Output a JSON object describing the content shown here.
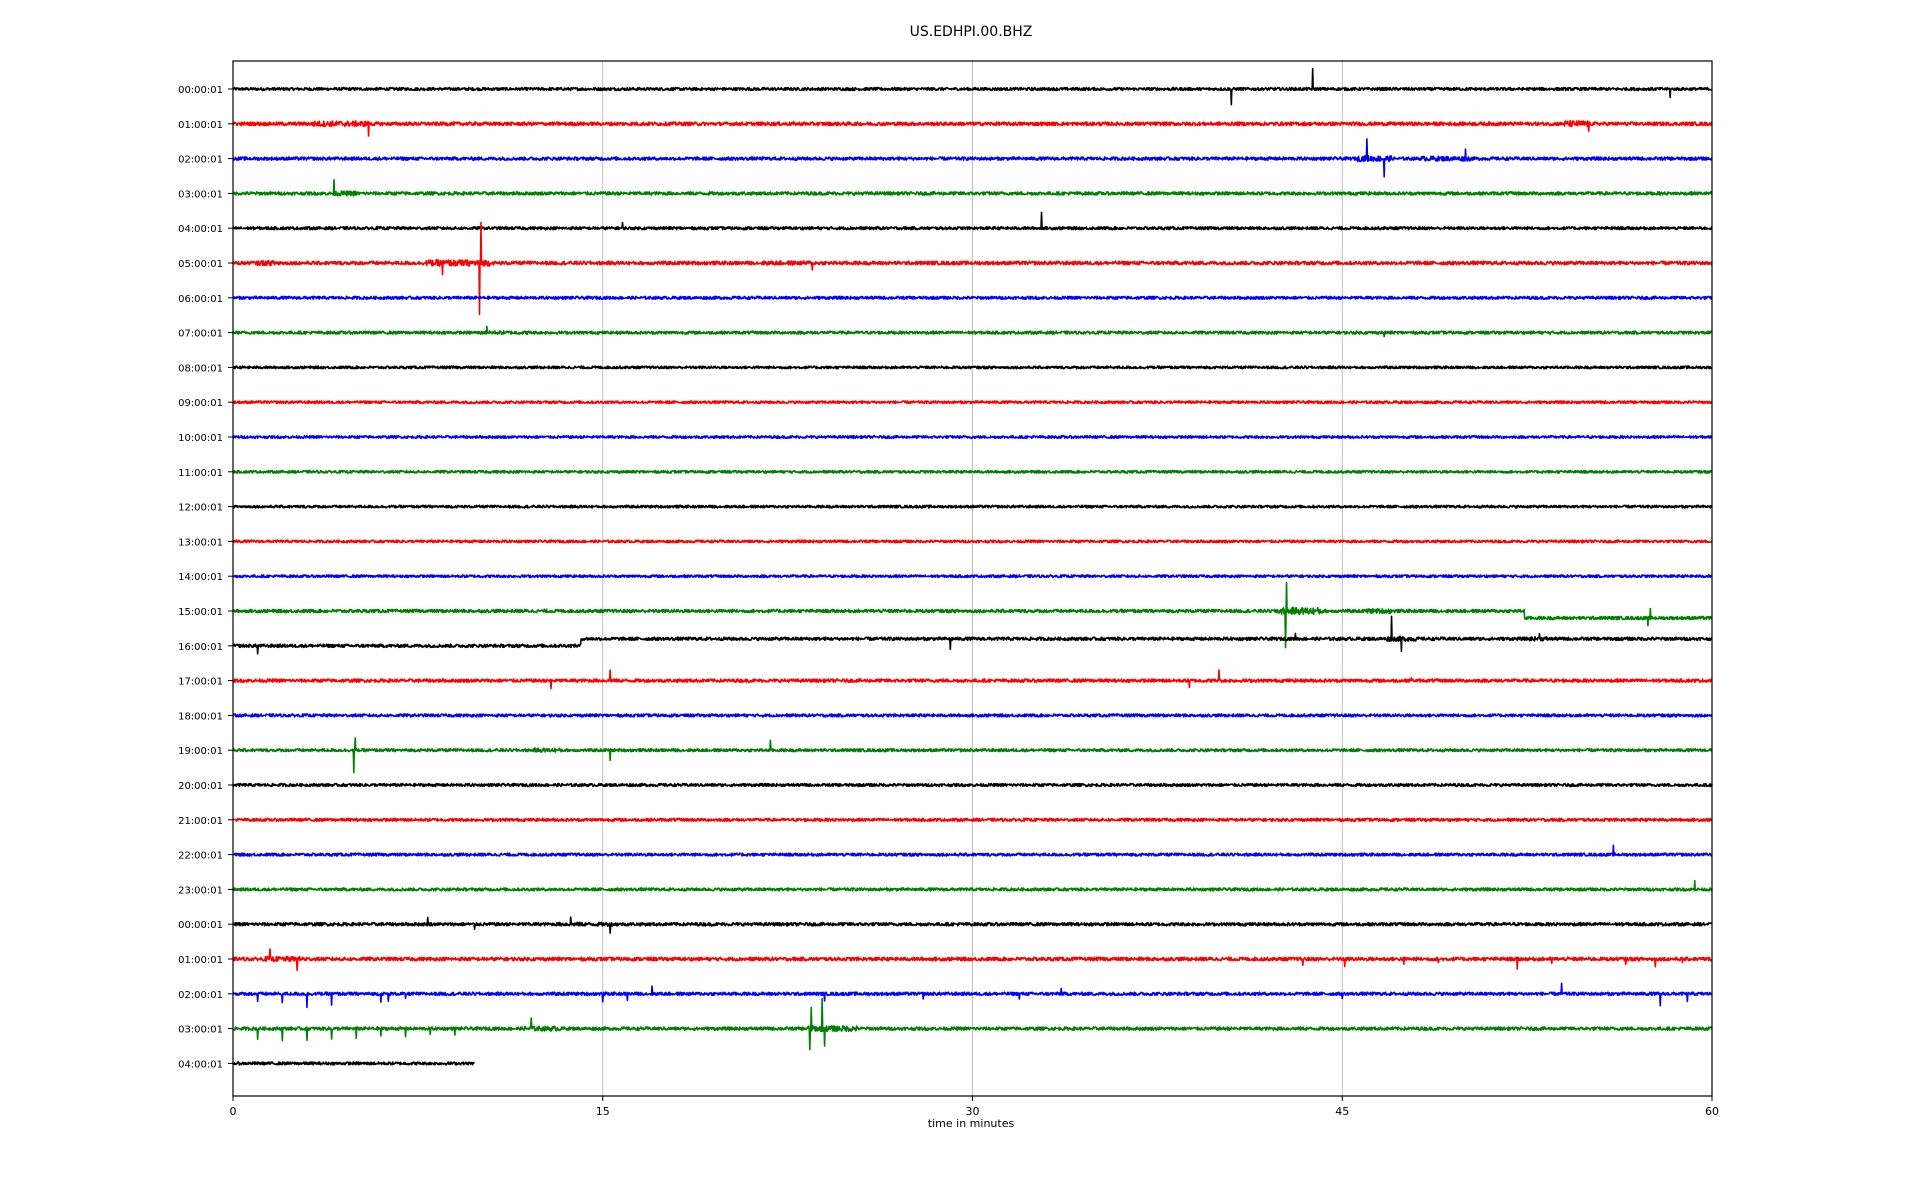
{
  "chart_data": {
    "type": "line",
    "title": "US.EDHPI.00.BHZ",
    "xlabel": "time in minutes",
    "ylabel": "",
    "xlim": [
      0,
      60
    ],
    "xticks": [
      0,
      15,
      30,
      45,
      60
    ],
    "xtick_labels": [
      "0",
      "15",
      "30",
      "45",
      "60"
    ],
    "vertical_grid": true,
    "trace_colors": [
      "#000000",
      "#ff0000",
      "#0000ff",
      "#008000"
    ],
    "rows": [
      {
        "label": "00:00:01",
        "color": "#000000",
        "end": 60,
        "noise": 0.18,
        "spikes": [
          [
            40.5,
            -3.2
          ],
          [
            43.8,
            3.8
          ],
          [
            58.3,
            -1.8
          ]
        ],
        "bursts": [],
        "steps": []
      },
      {
        "label": "01:00:01",
        "color": "#ff0000",
        "end": 60,
        "noise": 0.22,
        "spikes": [
          [
            5.5,
            -2.0
          ],
          [
            55.0,
            -1.5
          ]
        ],
        "bursts": [
          [
            3.2,
            5.5,
            1.6
          ],
          [
            54.0,
            55.0,
            1.8
          ]
        ],
        "steps": []
      },
      {
        "label": "02:00:01",
        "color": "#0000ff",
        "end": 60,
        "noise": 0.2,
        "spikes": [
          [
            46.0,
            3.6
          ],
          [
            46.7,
            -3.5
          ],
          [
            50.0,
            1.6
          ]
        ],
        "bursts": [
          [
            45.6,
            47.0,
            1.8
          ],
          [
            48.2,
            50.2,
            1.5
          ]
        ],
        "steps": []
      },
      {
        "label": "03:00:01",
        "color": "#008000",
        "end": 60,
        "noise": 0.2,
        "spikes": [
          [
            4.1,
            2.6
          ]
        ],
        "bursts": [
          [
            4.0,
            5.0,
            1.5
          ],
          [
            50.8,
            51.2,
            1.0
          ]
        ],
        "steps": []
      },
      {
        "label": "04:00:01",
        "color": "#000000",
        "end": 60,
        "noise": 0.18,
        "spikes": [
          [
            32.8,
            3.4
          ],
          [
            15.8,
            0.9
          ]
        ],
        "bursts": [],
        "steps": []
      },
      {
        "label": "05:00:01",
        "color": "#ff0000",
        "end": 60,
        "noise": 0.22,
        "spikes": [
          [
            10.0,
            -10.5
          ],
          [
            10.05,
            8.0
          ],
          [
            8.5,
            -2.0
          ],
          [
            23.5,
            -1.6
          ]
        ],
        "bursts": [
          [
            1.0,
            2.0,
            1.4
          ],
          [
            7.8,
            10.4,
            1.8
          ],
          [
            21.5,
            23.5,
            1.2
          ]
        ],
        "steps": []
      },
      {
        "label": "06:00:01",
        "color": "#0000ff",
        "end": 60,
        "noise": 0.18,
        "spikes": [],
        "bursts": [],
        "steps": []
      },
      {
        "label": "07:00:01",
        "color": "#008000",
        "end": 60,
        "noise": 0.18,
        "spikes": [
          [
            10.3,
            1.4
          ],
          [
            46.7,
            -1.0
          ]
        ],
        "bursts": [
          [
            10.0,
            12.0,
            1.2
          ]
        ],
        "steps": []
      },
      {
        "label": "08:00:01",
        "color": "#000000",
        "end": 60,
        "noise": 0.16,
        "spikes": [],
        "bursts": [],
        "steps": []
      },
      {
        "label": "09:00:01",
        "color": "#ff0000",
        "end": 60,
        "noise": 0.16,
        "spikes": [],
        "bursts": [],
        "steps": []
      },
      {
        "label": "10:00:01",
        "color": "#0000ff",
        "end": 60,
        "noise": 0.16,
        "spikes": [],
        "bursts": [],
        "steps": []
      },
      {
        "label": "11:00:01",
        "color": "#008000",
        "end": 60,
        "noise": 0.16,
        "spikes": [],
        "bursts": [],
        "steps": []
      },
      {
        "label": "12:00:01",
        "color": "#000000",
        "end": 60,
        "noise": 0.16,
        "spikes": [],
        "bursts": [],
        "steps": []
      },
      {
        "label": "13:00:01",
        "color": "#ff0000",
        "end": 60,
        "noise": 0.16,
        "spikes": [],
        "bursts": [],
        "steps": []
      },
      {
        "label": "14:00:01",
        "color": "#0000ff",
        "end": 60,
        "noise": 0.16,
        "spikes": [],
        "bursts": [],
        "steps": []
      },
      {
        "label": "15:00:01",
        "color": "#008000",
        "end": 60,
        "noise": 0.2,
        "spikes": [
          [
            42.7,
            -7.5
          ],
          [
            42.75,
            5.2
          ],
          [
            57.4,
            -1.8
          ],
          [
            57.5,
            1.6
          ]
        ],
        "bursts": [
          [
            42.3,
            44.2,
            2.2
          ],
          [
            46.0,
            47.0,
            1.5
          ]
        ],
        "steps": [
          [
            52.4,
            -1.4
          ]
        ]
      },
      {
        "label": "16:00:01",
        "color": "#000000",
        "end": 60,
        "noise": 0.2,
        "spikes": [
          [
            1.0,
            -1.6
          ],
          [
            29.1,
            -2.2
          ],
          [
            47.0,
            4.2
          ],
          [
            47.4,
            -2.4
          ],
          [
            53.0,
            1.4
          ],
          [
            43.1,
            1.2
          ]
        ],
        "bursts": [
          [
            46.8,
            48.0,
            1.5
          ],
          [
            52.6,
            53.4,
            1.3
          ]
        ],
        "steps": [
          [
            14.1,
            1.4
          ]
        ]
      },
      {
        "label": "17:00:01",
        "color": "#ff0000",
        "end": 60,
        "noise": 0.2,
        "spikes": [
          [
            12.9,
            -1.6
          ],
          [
            15.3,
            2.2
          ],
          [
            38.8,
            -1.3
          ],
          [
            40.0,
            2.4
          ],
          [
            47.8,
            0.8
          ]
        ],
        "bursts": [],
        "steps": []
      },
      {
        "label": "18:00:01",
        "color": "#0000ff",
        "end": 60,
        "noise": 0.18,
        "spikes": [],
        "bursts": [],
        "steps": []
      },
      {
        "label": "19:00:01",
        "color": "#008000",
        "end": 60,
        "noise": 0.18,
        "spikes": [
          [
            4.9,
            -4.5
          ],
          [
            4.95,
            2.4
          ],
          [
            15.3,
            -2.0
          ],
          [
            21.8,
            1.9
          ]
        ],
        "bursts": [
          [
            12.2,
            13.4,
            1.4
          ]
        ],
        "steps": []
      },
      {
        "label": "20:00:01",
        "color": "#000000",
        "end": 60,
        "noise": 0.18,
        "spikes": [],
        "bursts": [],
        "steps": []
      },
      {
        "label": "21:00:01",
        "color": "#ff0000",
        "end": 60,
        "noise": 0.18,
        "spikes": [],
        "bursts": [],
        "steps": []
      },
      {
        "label": "22:00:01",
        "color": "#0000ff",
        "end": 60,
        "noise": 0.18,
        "spikes": [
          [
            56.0,
            1.6
          ]
        ],
        "bursts": [],
        "steps": []
      },
      {
        "label": "23:00:01",
        "color": "#008000",
        "end": 60,
        "noise": 0.18,
        "spikes": [
          [
            59.3,
            2.0
          ]
        ],
        "bursts": [],
        "steps": []
      },
      {
        "label": "00:00:01",
        "color": "#000000",
        "end": 60,
        "noise": 0.2,
        "spikes": [
          [
            7.9,
            1.2
          ],
          [
            9.8,
            -1.2
          ],
          [
            13.7,
            1.4
          ],
          [
            15.3,
            -1.4
          ]
        ],
        "bursts": [
          [
            13.2,
            15.6,
            1.2
          ]
        ],
        "steps": []
      },
      {
        "label": "01:00:01",
        "color": "#ff0000",
        "end": 60,
        "noise": 0.22,
        "spikes": [
          [
            1.5,
            1.6
          ],
          [
            2.6,
            -1.8
          ],
          [
            43.4,
            -1.4
          ],
          [
            45.1,
            -1.5
          ],
          [
            47.5,
            -1.0
          ],
          [
            48.9,
            -0.9
          ],
          [
            52.1,
            -1.8
          ],
          [
            53.5,
            -1.0
          ],
          [
            56.5,
            -1.3
          ],
          [
            57.7,
            -1.3
          ],
          [
            58.8,
            -1.0
          ]
        ],
        "bursts": [
          [
            1.3,
            3.0,
            1.4
          ]
        ],
        "steps": []
      },
      {
        "label": "02:00:01",
        "color": "#0000ff",
        "end": 60,
        "noise": 0.2,
        "spikes": [
          [
            1.0,
            -1.4
          ],
          [
            2.0,
            -1.9
          ],
          [
            3.0,
            -2.6
          ],
          [
            4.0,
            -2.1
          ],
          [
            6.0,
            -1.6
          ],
          [
            6.3,
            -1.7
          ],
          [
            7.0,
            -1.2
          ],
          [
            15.0,
            -1.9
          ],
          [
            16.0,
            -1.4
          ],
          [
            17.0,
            1.6
          ],
          [
            24.0,
            -1.5
          ],
          [
            28.0,
            -1.2
          ],
          [
            31.9,
            -1.2
          ],
          [
            33.6,
            1.0
          ],
          [
            45.0,
            -1.2
          ],
          [
            53.9,
            2.0
          ],
          [
            57.9,
            -2.6
          ],
          [
            59.0,
            -1.8
          ]
        ],
        "bursts": [],
        "steps": []
      },
      {
        "label": "03:00:01",
        "color": "#008000",
        "end": 60,
        "noise": 0.2,
        "spikes": [
          [
            1.0,
            -2.2
          ],
          [
            2.0,
            -2.2
          ],
          [
            3.0,
            -2.4
          ],
          [
            4.0,
            -2.0
          ],
          [
            5.0,
            -1.8
          ],
          [
            6.0,
            -1.4
          ],
          [
            7.0,
            -1.4
          ],
          [
            8.0,
            -1.3
          ],
          [
            9.0,
            -1.0
          ],
          [
            12.1,
            2.0
          ],
          [
            23.4,
            -4.5
          ],
          [
            23.45,
            4.2
          ],
          [
            23.9,
            5.8
          ],
          [
            24.0,
            -3.0
          ]
        ],
        "bursts": [
          [
            11.8,
            13.3,
            1.5
          ],
          [
            23.2,
            25.3,
            1.8
          ]
        ],
        "steps": []
      },
      {
        "label": "04:00:01",
        "color": "#000000",
        "end": 9.8,
        "noise": 0.18,
        "spikes": [],
        "bursts": [],
        "steps": []
      }
    ]
  }
}
